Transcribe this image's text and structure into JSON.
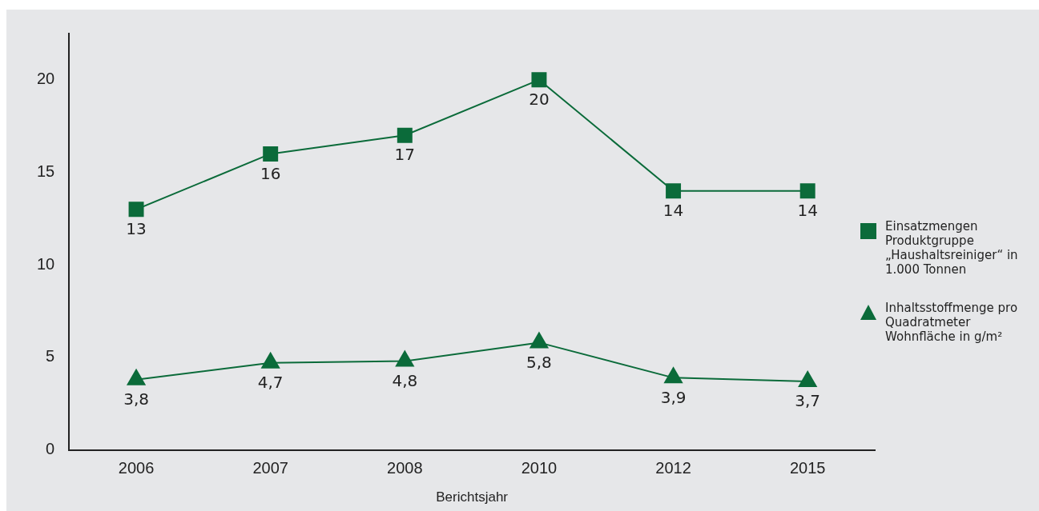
{
  "chart_data": {
    "type": "line",
    "xlabel": "Berichtsjahr",
    "categories": [
      "2006",
      "2007",
      "2008",
      "2010",
      "2012",
      "2015"
    ],
    "series": [
      {
        "name": "Einsatzmengen Produktgruppe „Haushaltsreiniger“ in 1.000 Tonnen",
        "color": "#0b6b3a",
        "marker": "square",
        "values": [
          13,
          16,
          17,
          20,
          14,
          14
        ],
        "value_labels": [
          "13",
          "16",
          "17",
          "20",
          "14",
          "14"
        ]
      },
      {
        "name": "Inhaltsstoffmenge pro Quadratmeter Wohnfläche in g/m²",
        "color": "#0b6b3a",
        "marker": "triangle",
        "values": [
          3.8,
          4.7,
          4.8,
          5.8,
          3.9,
          3.7
        ],
        "value_labels": [
          "3,8",
          "4,7",
          "4,8",
          "5,8",
          "3,9",
          "3,7"
        ]
      }
    ],
    "ylim": [
      0,
      22.5
    ],
    "yticks": [
      0,
      5,
      10,
      15,
      20
    ],
    "grid": false,
    "legend": "right"
  }
}
